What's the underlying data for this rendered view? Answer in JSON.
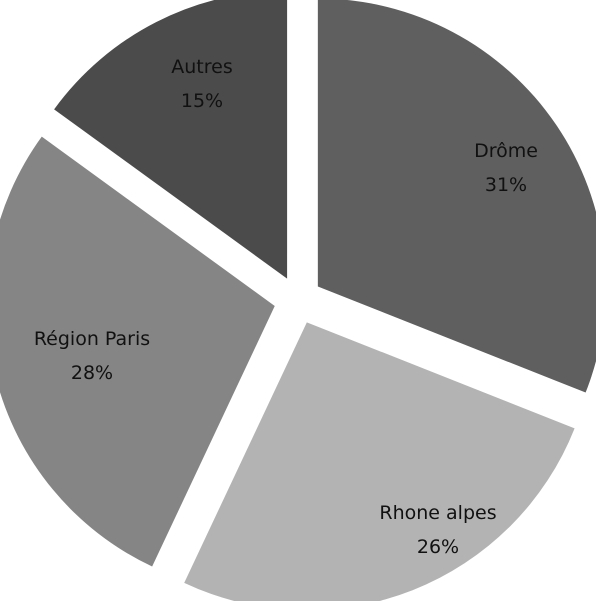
{
  "chart_data": {
    "type": "pie",
    "exploded": true,
    "legend": "none",
    "slices": [
      {
        "label": "Drôme",
        "value": 31,
        "value_label": "31%",
        "color": "#5f5f5f"
      },
      {
        "label": "Rhone alpes",
        "value": 26,
        "value_label": "26%",
        "color": "#b3b3b3"
      },
      {
        "label": "Région Paris",
        "value": 28,
        "value_label": "28%",
        "color": "#858585"
      },
      {
        "label": "Autres",
        "value": 15,
        "value_label": "15%",
        "color": "#4b4b4b"
      }
    ]
  }
}
